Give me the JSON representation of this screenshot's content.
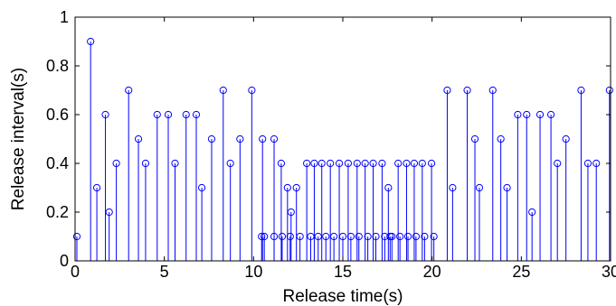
{
  "chart_data": {
    "type": "stem",
    "xlabel": "Release time(s)",
    "ylabel": "Release interval(s)",
    "xlim": [
      0,
      30
    ],
    "ylim": [
      0,
      1
    ],
    "x_ticks": [
      "0",
      "5",
      "10",
      "15",
      "20",
      "25",
      "30"
    ],
    "y_ticks": [
      "0",
      "0.2",
      "0.4",
      "0.6",
      "0.8",
      "1"
    ],
    "grid": false,
    "color": "#0000ff",
    "points": [
      [
        0.1,
        0.1
      ],
      [
        0.87,
        0.9
      ],
      [
        1.22,
        0.3
      ],
      [
        1.7,
        0.6
      ],
      [
        1.91,
        0.2
      ],
      [
        2.31,
        0.4
      ],
      [
        3.0,
        0.7
      ],
      [
        3.55,
        0.5
      ],
      [
        3.95,
        0.4
      ],
      [
        4.6,
        0.6
      ],
      [
        5.22,
        0.6
      ],
      [
        5.6,
        0.4
      ],
      [
        6.22,
        0.6
      ],
      [
        6.79,
        0.6
      ],
      [
        7.1,
        0.3
      ],
      [
        7.65,
        0.5
      ],
      [
        8.3,
        0.7
      ],
      [
        8.7,
        0.4
      ],
      [
        9.24,
        0.5
      ],
      [
        9.9,
        0.7
      ],
      [
        10.5,
        0.5
      ],
      [
        10.45,
        0.1
      ],
      [
        10.6,
        0.1
      ],
      [
        11.15,
        0.5
      ],
      [
        11.15,
        0.1
      ],
      [
        11.55,
        0.4
      ],
      [
        11.6,
        0.1
      ],
      [
        11.9,
        0.3
      ],
      [
        12.05,
        0.1
      ],
      [
        12.1,
        0.2
      ],
      [
        12.4,
        0.3
      ],
      [
        12.6,
        0.1
      ],
      [
        12.98,
        0.4
      ],
      [
        13.2,
        0.1
      ],
      [
        13.4,
        0.4
      ],
      [
        13.62,
        0.1
      ],
      [
        13.82,
        0.4
      ],
      [
        14.05,
        0.1
      ],
      [
        14.3,
        0.4
      ],
      [
        14.5,
        0.1
      ],
      [
        14.8,
        0.4
      ],
      [
        15.0,
        0.1
      ],
      [
        15.3,
        0.4
      ],
      [
        15.45,
        0.1
      ],
      [
        15.8,
        0.4
      ],
      [
        15.9,
        0.1
      ],
      [
        16.25,
        0.4
      ],
      [
        16.4,
        0.1
      ],
      [
        16.7,
        0.4
      ],
      [
        16.85,
        0.1
      ],
      [
        17.2,
        0.4
      ],
      [
        17.35,
        0.1
      ],
      [
        17.55,
        0.3
      ],
      [
        17.65,
        0.1
      ],
      [
        17.75,
        0.1
      ],
      [
        18.1,
        0.4
      ],
      [
        18.2,
        0.1
      ],
      [
        18.57,
        0.4
      ],
      [
        18.65,
        0.1
      ],
      [
        19.0,
        0.4
      ],
      [
        19.1,
        0.1
      ],
      [
        19.45,
        0.4
      ],
      [
        19.58,
        0.1
      ],
      [
        19.97,
        0.4
      ],
      [
        20.1,
        0.1
      ],
      [
        20.85,
        0.7
      ],
      [
        21.15,
        0.3
      ],
      [
        21.97,
        0.7
      ],
      [
        22.4,
        0.5
      ],
      [
        22.65,
        0.3
      ],
      [
        23.4,
        0.7
      ],
      [
        23.85,
        0.5
      ],
      [
        24.2,
        0.3
      ],
      [
        24.8,
        0.6
      ],
      [
        25.3,
        0.6
      ],
      [
        25.6,
        0.2
      ],
      [
        26.05,
        0.6
      ],
      [
        26.66,
        0.6
      ],
      [
        27.02,
        0.4
      ],
      [
        27.5,
        0.5
      ],
      [
        28.35,
        0.7
      ],
      [
        28.73,
        0.4
      ],
      [
        29.2,
        0.4
      ],
      [
        29.94,
        0.7
      ]
    ]
  }
}
